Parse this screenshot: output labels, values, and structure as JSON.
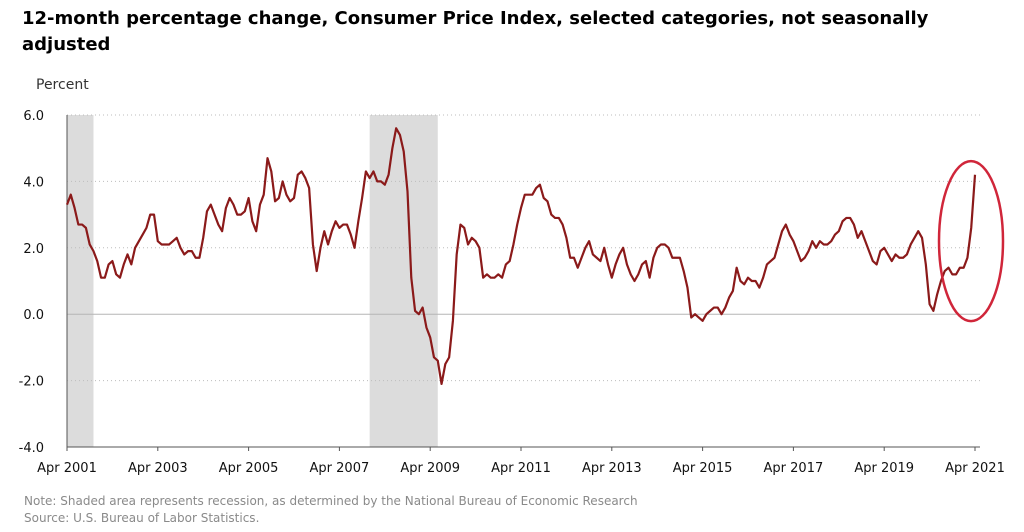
{
  "chart_data": {
    "type": "line",
    "title": "12-month percentage change, Consumer Price Index, selected categories, not seasonally adjusted",
    "ylabel": "Percent",
    "ylim": [
      -4.0,
      6.0
    ],
    "yticks": [
      "6.0",
      "4.0",
      "2.0",
      "0.0",
      "-2.0",
      "-4.0"
    ],
    "xticks": [
      "Apr 2001",
      "Apr 2003",
      "Apr 2005",
      "Apr 2007",
      "Apr 2009",
      "Apr 2011",
      "Apr 2013",
      "Apr 2015",
      "Apr 2017",
      "Apr 2019",
      "Apr 2021"
    ],
    "grid": "horizontal dotted",
    "line_color": "#8b1a1a",
    "recessions": [
      {
        "start": "2001-04",
        "end": "2001-11"
      },
      {
        "start": "2007-12",
        "end": "2009-06"
      }
    ],
    "series": [
      {
        "start": "2001-04",
        "frequency": "monthly",
        "values": [
          3.3,
          3.6,
          3.2,
          2.7,
          2.7,
          2.6,
          2.1,
          1.9,
          1.6,
          1.1,
          1.1,
          1.5,
          1.6,
          1.2,
          1.1,
          1.5,
          1.8,
          1.5,
          2.0,
          2.2,
          2.4,
          2.6,
          3.0,
          3.0,
          2.2,
          2.1,
          2.1,
          2.1,
          2.2,
          2.3,
          2.0,
          1.8,
          1.9,
          1.9,
          1.7,
          1.7,
          2.3,
          3.1,
          3.3,
          3.0,
          2.7,
          2.5,
          3.2,
          3.5,
          3.3,
          3.0,
          3.0,
          3.1,
          3.5,
          2.8,
          2.5,
          3.3,
          3.6,
          4.7,
          4.3,
          3.4,
          3.5,
          4.0,
          3.6,
          3.4,
          3.5,
          4.2,
          4.3,
          4.1,
          3.8,
          2.1,
          1.3,
          2.0,
          2.5,
          2.1,
          2.5,
          2.8,
          2.6,
          2.7,
          2.7,
          2.4,
          2.0,
          2.8,
          3.5,
          4.3,
          4.1,
          4.3,
          4.0,
          4.0,
          3.9,
          4.2,
          5.0,
          5.6,
          5.4,
          4.9,
          3.7,
          1.1,
          0.1,
          0.0,
          0.2,
          -0.4,
          -0.7,
          -1.3,
          -1.4,
          -2.1,
          -1.5,
          -1.3,
          -0.2,
          1.8,
          2.7,
          2.6,
          2.1,
          2.3,
          2.2,
          2.0,
          1.1,
          1.2,
          1.1,
          1.1,
          1.2,
          1.1,
          1.5,
          1.6,
          2.1,
          2.7,
          3.2,
          3.6,
          3.6,
          3.6,
          3.8,
          3.9,
          3.5,
          3.4,
          3.0,
          2.9,
          2.9,
          2.7,
          2.3,
          1.7,
          1.7,
          1.4,
          1.7,
          2.0,
          2.2,
          1.8,
          1.7,
          1.6,
          2.0,
          1.5,
          1.1,
          1.5,
          1.8,
          2.0,
          1.5,
          1.2,
          1.0,
          1.2,
          1.5,
          1.6,
          1.1,
          1.7,
          2.0,
          2.1,
          2.1,
          2.0,
          1.7,
          1.7,
          1.7,
          1.3,
          0.8,
          -0.1,
          0.0,
          -0.1,
          -0.2,
          0.0,
          0.1,
          0.2,
          0.2,
          0.0,
          0.2,
          0.5,
          0.7,
          1.4,
          1.0,
          0.9,
          1.1,
          1.0,
          1.0,
          0.8,
          1.1,
          1.5,
          1.6,
          1.7,
          2.1,
          2.5,
          2.7,
          2.4,
          2.2,
          1.9,
          1.6,
          1.7,
          1.9,
          2.2,
          2.0,
          2.2,
          2.1,
          2.1,
          2.2,
          2.4,
          2.5,
          2.8,
          2.9,
          2.9,
          2.7,
          2.3,
          2.5,
          2.2,
          1.9,
          1.6,
          1.5,
          1.9,
          2.0,
          1.8,
          1.6,
          1.8,
          1.7,
          1.7,
          1.8,
          2.1,
          2.3,
          2.5,
          2.3,
          1.5,
          0.3,
          0.1,
          0.6,
          1.0,
          1.3,
          1.4,
          1.2,
          1.2,
          1.4,
          1.4,
          1.7,
          2.6,
          4.2
        ]
      }
    ],
    "annotation": "red circle highlighting the final surge to Apr 2021"
  },
  "notes": {
    "line1": "Note: Shaded area represents recession, as determined by the National Bureau of Economic Research",
    "line2": "Source: U.S. Bureau of Labor Statistics."
  }
}
